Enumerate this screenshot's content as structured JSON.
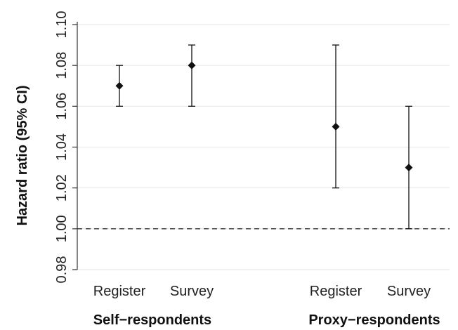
{
  "chart_data": {
    "type": "scatter",
    "xlabel": "",
    "ylabel": "Hazard ratio (95% CI)",
    "ylim": [
      0.98,
      1.1
    ],
    "yticks": [
      "0.98",
      "1.00",
      "1.02",
      "1.04",
      "1.06",
      "1.08",
      "1.10"
    ],
    "grid": true,
    "reference_line": 1.0,
    "groups": [
      {
        "label": "Self−respondents",
        "categories": [
          "Register",
          "Survey"
        ]
      },
      {
        "label": "Proxy−respondents",
        "categories": [
          "Register",
          "Survey"
        ]
      }
    ],
    "points": [
      {
        "group": "Self−respondents",
        "category": "Register",
        "hr": 1.07,
        "ci_low": 1.06,
        "ci_high": 1.08
      },
      {
        "group": "Self−respondents",
        "category": "Survey",
        "hr": 1.08,
        "ci_low": 1.06,
        "ci_high": 1.09
      },
      {
        "group": "Proxy−respondents",
        "category": "Register",
        "hr": 1.05,
        "ci_low": 1.02,
        "ci_high": 1.09
      },
      {
        "group": "Proxy−respondents",
        "category": "Survey",
        "hr": 1.03,
        "ci_low": 1.0,
        "ci_high": 1.06
      }
    ],
    "colors": {
      "marker": "#111111",
      "grid": "#e6e6e6",
      "axis": "#333333",
      "reference": "#333333"
    }
  }
}
